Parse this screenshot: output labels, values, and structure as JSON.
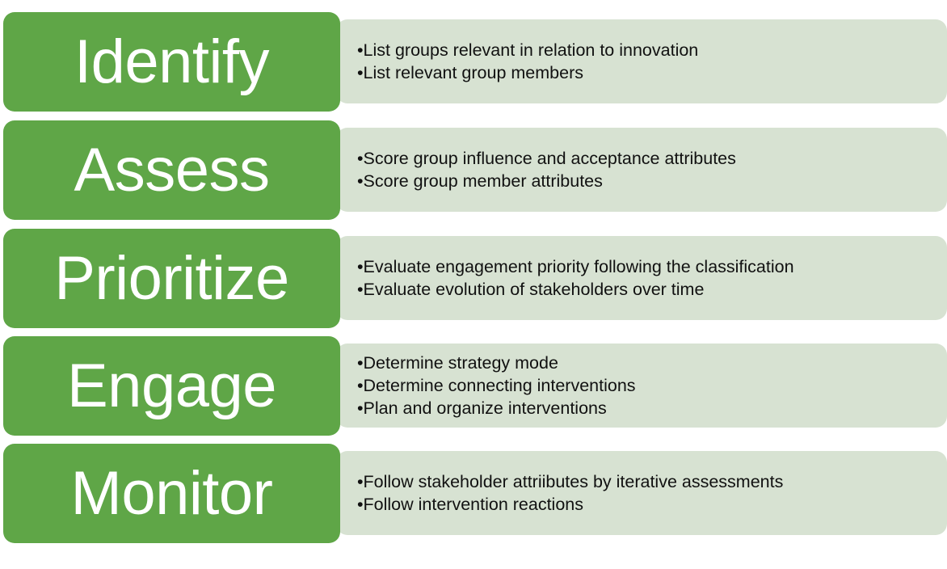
{
  "colors": {
    "label_fill": "#5fa647",
    "label_text": "#ffffff",
    "detail_fill": "#d7e2d2",
    "detail_text": "#111111"
  },
  "steps": [
    {
      "label": "Identify",
      "bullets": [
        "List groups relevant in relation to innovation",
        "List relevant group members"
      ]
    },
    {
      "label": "Assess",
      "bullets": [
        "Score group influence and acceptance attributes",
        "Score group member attributes"
      ]
    },
    {
      "label": "Prioritize",
      "bullets": [
        "Evaluate engagement priority following the classification",
        "Evaluate evolution of stakeholders over time"
      ]
    },
    {
      "label": "Engage",
      "bullets": [
        "Determine strategy mode",
        "Determine connecting interventions",
        "Plan and organize interventions"
      ]
    },
    {
      "label": "Monitor",
      "bullets": [
        "Follow stakeholder attriibutes by iterative assessments",
        "Follow intervention reactions"
      ]
    }
  ]
}
